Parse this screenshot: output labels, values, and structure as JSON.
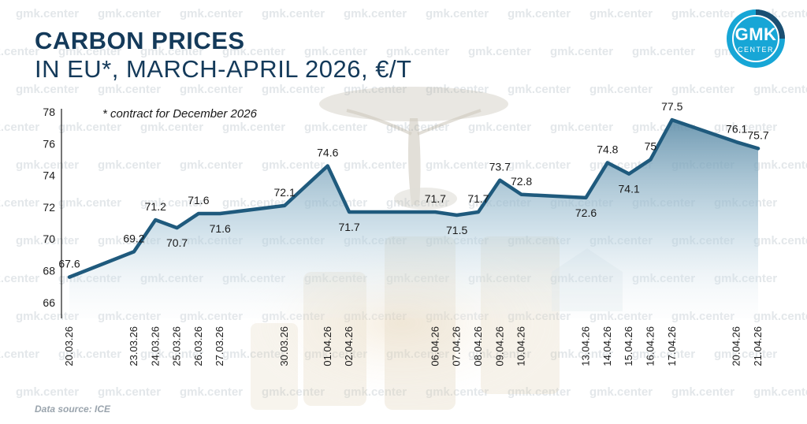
{
  "header": {
    "title_line1": "CARBON PRICES",
    "title_line2": "IN EU*, MARCH-APRIL 2026, €/T",
    "footnote": "* contract for December 2026"
  },
  "footer": {
    "source": "Data source: ICE"
  },
  "logo": {
    "text": "GMK",
    "subtext": "CENTER"
  },
  "watermark": {
    "text": "gmk.center"
  },
  "colors": {
    "line": "#1f5a7d",
    "title": "#143a5a",
    "logo": "#17a6d6",
    "area": "#9fc3d8"
  },
  "chart_data": {
    "type": "area",
    "title": "CARBON PRICES IN EU*, MARCH-APRIL 2026, €/T",
    "xlabel": "",
    "ylabel": "",
    "ylim": [
      65,
      78
    ],
    "yticks": [
      66,
      68,
      70,
      72,
      74,
      76,
      78
    ],
    "grid": false,
    "points": [
      {
        "date": "20.03.26",
        "value": 67.6,
        "label": "67.6"
      },
      {
        "date": "23.03.26",
        "value": 69.2,
        "label": "69.2"
      },
      {
        "date": "24.03.26",
        "value": 71.2,
        "label": "71.2"
      },
      {
        "date": "25.03.26",
        "value": 70.7,
        "label": "70.7"
      },
      {
        "date": "26.03.26",
        "value": 71.6,
        "label": "71.6"
      },
      {
        "date": "27.03.26",
        "value": 71.6,
        "label": "71.6"
      },
      {
        "date": "30.03.26",
        "value": 72.1,
        "label": "72.1"
      },
      {
        "date": "01.04.26",
        "value": 74.6,
        "label": "74.6"
      },
      {
        "date": "02.04.26",
        "value": 71.7,
        "label": "71.7"
      },
      {
        "date": "06.04.26",
        "value": 71.7,
        "label": "71.7"
      },
      {
        "date": "07.04.26",
        "value": 71.5,
        "label": "71.5"
      },
      {
        "date": "08.04.26",
        "value": 71.7,
        "label": "71.7"
      },
      {
        "date": "09.04.26",
        "value": 73.7,
        "label": "73.7"
      },
      {
        "date": "10.04.26",
        "value": 72.8,
        "label": "72.8"
      },
      {
        "date": "13.04.26",
        "value": 72.6,
        "label": "72.6"
      },
      {
        "date": "14.04.26",
        "value": 74.8,
        "label": "74.8"
      },
      {
        "date": "15.04.26",
        "value": 74.1,
        "label": "74.1"
      },
      {
        "date": "16.04.26",
        "value": 75,
        "label": "75"
      },
      {
        "date": "17.04.26",
        "value": 77.5,
        "label": "77.5"
      },
      {
        "date": "20.04.26",
        "value": 76.1,
        "label": "76.1"
      },
      {
        "date": "21.04.26",
        "value": 75.7,
        "label": "75.7"
      }
    ]
  }
}
